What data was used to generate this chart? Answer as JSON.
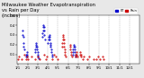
{
  "title": "Milwaukee Weather Evapotranspiration",
  "title2": "vs Rain per Day",
  "title3": "(Inches)",
  "title_fontsize": 3.8,
  "bg_color": "#e8e8e8",
  "plot_bg": "#ffffff",
  "et_color": "#0000cc",
  "rain_color": "#cc0000",
  "legend_et": "ET",
  "legend_rain": "Rain",
  "ylim": [
    0,
    0.5
  ],
  "ytick_vals": [
    0.1,
    0.2,
    0.3,
    0.4,
    0.5
  ],
  "marker_size": 1.0,
  "et_values": [
    0.0,
    0.0,
    0.0,
    0.0,
    0.0,
    0.0,
    0.0,
    0.0,
    0.0,
    0.0,
    0.0,
    0.0,
    0.0,
    0.0,
    0.35,
    0.3,
    0.28,
    0.22,
    0.18,
    0.15,
    0.0,
    0.0,
    0.0,
    0.0,
    0.0,
    0.08,
    0.1,
    0.12,
    0.1,
    0.08,
    0.0,
    0.0,
    0.0,
    0.0,
    0.0,
    0.0,
    0.0,
    0.0,
    0.0,
    0.0,
    0.0,
    0.0,
    0.0,
    0.0,
    0.0,
    0.0,
    0.0,
    0.0,
    0.0,
    0.0,
    0.0,
    0.0,
    0.12,
    0.15,
    0.18,
    0.2,
    0.22,
    0.18,
    0.15,
    0.12,
    0.1,
    0.08,
    0.06,
    0.0,
    0.0,
    0.0,
    0.0,
    0.0,
    0.0,
    0.0,
    0.0,
    0.0,
    0.0,
    0.28,
    0.32,
    0.35,
    0.38,
    0.4,
    0.38,
    0.35,
    0.3,
    0.25,
    0.0,
    0.0,
    0.0,
    0.0,
    0.0,
    0.0,
    0.0,
    0.0,
    0.0,
    0.22,
    0.25,
    0.28,
    0.3,
    0.28,
    0.25,
    0.22,
    0.2,
    0.18,
    0.15,
    0.12,
    0.1,
    0.08,
    0.0,
    0.0,
    0.0,
    0.0,
    0.0,
    0.0,
    0.0,
    0.0,
    0.0,
    0.0,
    0.0,
    0.0,
    0.0,
    0.0,
    0.0,
    0.0,
    0.0,
    0.0,
    0.0,
    0.0,
    0.0,
    0.0,
    0.0,
    0.0,
    0.0,
    0.0,
    0.0,
    0.0,
    0.0,
    0.0,
    0.0,
    0.0,
    0.0,
    0.0,
    0.0,
    0.0,
    0.0,
    0.0,
    0.0,
    0.0,
    0.0,
    0.0,
    0.0,
    0.0,
    0.0,
    0.0,
    0.0,
    0.0,
    0.0,
    0.0,
    0.0,
    0.0,
    0.0,
    0.0,
    0.0,
    0.0,
    0.0,
    0.0,
    0.0,
    0.0,
    0.1,
    0.12,
    0.15,
    0.18,
    0.2,
    0.18,
    0.15,
    0.12,
    0.1,
    0.08,
    0.0,
    0.0,
    0.0,
    0.0,
    0.0,
    0.0,
    0.0,
    0.0,
    0.0,
    0.0,
    0.0,
    0.0,
    0.0,
    0.0,
    0.0,
    0.0,
    0.0,
    0.0,
    0.0,
    0.0,
    0.0,
    0.0,
    0.0,
    0.0,
    0.0,
    0.0,
    0.0,
    0.0,
    0.0,
    0.0,
    0.0,
    0.0,
    0.0,
    0.0,
    0.0,
    0.0,
    0.0,
    0.0,
    0.0,
    0.0,
    0.0,
    0.0,
    0.0,
    0.0,
    0.0,
    0.0,
    0.0,
    0.0,
    0.0,
    0.0,
    0.0,
    0.0,
    0.0,
    0.0,
    0.0,
    0.0,
    0.0,
    0.0,
    0.0,
    0.0,
    0.0,
    0.0,
    0.0,
    0.0,
    0.0,
    0.0,
    0.0,
    0.0,
    0.0,
    0.0,
    0.0,
    0.0,
    0.0,
    0.0,
    0.0,
    0.0,
    0.0,
    0.0,
    0.0,
    0.0,
    0.0,
    0.0,
    0.0,
    0.0,
    0.0,
    0.0,
    0.0,
    0.0,
    0.0,
    0.0,
    0.0,
    0.0,
    0.0,
    0.0,
    0.0,
    0.0,
    0.0,
    0.0,
    0.0,
    0.0,
    0.0,
    0.0,
    0.0,
    0.0,
    0.0,
    0.0,
    0.0,
    0.0,
    0.0,
    0.0,
    0.0,
    0.0,
    0.0,
    0.0,
    0.0,
    0.0,
    0.0,
    0.0,
    0.0,
    0.0,
    0.0,
    0.0,
    0.0,
    0.0,
    0.0,
    0.0,
    0.0,
    0.0,
    0.0,
    0.0,
    0.0,
    0.0,
    0.0,
    0.0,
    0.0,
    0.0,
    0.0,
    0.0,
    0.0,
    0.0,
    0.0,
    0.0,
    0.0,
    0.0,
    0.0,
    0.0,
    0.0,
    0.0,
    0.0,
    0.0,
    0.0,
    0.0,
    0.0,
    0.0,
    0.0,
    0.0,
    0.0,
    0.0,
    0.0,
    0.0,
    0.0,
    0.0,
    0.0,
    0.0,
    0.0,
    0.0,
    0.0,
    0.0,
    0.0,
    0.0,
    0.0,
    0.0,
    0.0,
    0.0,
    0.0,
    0.0,
    0.0,
    0.0,
    0.0,
    0.0,
    0.0,
    0.0,
    0.0,
    0.0,
    0.0,
    0.0,
    0.0,
    0.0,
    0.0,
    0.0
  ],
  "rain_values": [
    0.0,
    0.05,
    0.0,
    0.0,
    0.0,
    0.08,
    0.0,
    0.0,
    0.0,
    0.0,
    0.0,
    0.05,
    0.0,
    0.0,
    0.0,
    0.0,
    0.0,
    0.0,
    0.0,
    0.0,
    0.1,
    0.0,
    0.0,
    0.0,
    0.05,
    0.0,
    0.0,
    0.0,
    0.0,
    0.08,
    0.0,
    0.0,
    0.05,
    0.0,
    0.0,
    0.0,
    0.0,
    0.0,
    0.0,
    0.0,
    0.0,
    0.0,
    0.08,
    0.0,
    0.0,
    0.0,
    0.0,
    0.0,
    0.0,
    0.0,
    0.0,
    0.05,
    0.0,
    0.0,
    0.0,
    0.0,
    0.0,
    0.0,
    0.0,
    0.0,
    0.0,
    0.08,
    0.0,
    0.0,
    0.0,
    0.0,
    0.05,
    0.0,
    0.0,
    0.0,
    0.0,
    0.0,
    0.0,
    0.0,
    0.0,
    0.0,
    0.0,
    0.0,
    0.0,
    0.0,
    0.1,
    0.0,
    0.0,
    0.0,
    0.05,
    0.0,
    0.0,
    0.0,
    0.08,
    0.0,
    0.0,
    0.0,
    0.0,
    0.0,
    0.0,
    0.0,
    0.0,
    0.0,
    0.0,
    0.0,
    0.0,
    0.0,
    0.0,
    0.05,
    0.0,
    0.0,
    0.0,
    0.0,
    0.1,
    0.0,
    0.0,
    0.0,
    0.0,
    0.0,
    0.08,
    0.0,
    0.0,
    0.0,
    0.0,
    0.05,
    0.0,
    0.0,
    0.0,
    0.0,
    0.0,
    0.0,
    0.0,
    0.0,
    0.0,
    0.0,
    0.0,
    0.0,
    0.18,
    0.22,
    0.25,
    0.28,
    0.3,
    0.25,
    0.22,
    0.18,
    0.15,
    0.12,
    0.1,
    0.08,
    0.0,
    0.0,
    0.0,
    0.0,
    0.0,
    0.0,
    0.0,
    0.0,
    0.0,
    0.0,
    0.0,
    0.0,
    0.2,
    0.18,
    0.15,
    0.12,
    0.1,
    0.08,
    0.0,
    0.0,
    0.0,
    0.0,
    0.0,
    0.0,
    0.0,
    0.0,
    0.0,
    0.0,
    0.0,
    0.08,
    0.1,
    0.12,
    0.1,
    0.08,
    0.0,
    0.0,
    0.0,
    0.0,
    0.0,
    0.0,
    0.0,
    0.0,
    0.1,
    0.12,
    0.1,
    0.08,
    0.0,
    0.0,
    0.0,
    0.0,
    0.05,
    0.0,
    0.0,
    0.0,
    0.08,
    0.0,
    0.0,
    0.0,
    0.0,
    0.0,
    0.0,
    0.0,
    0.0,
    0.0,
    0.05,
    0.0,
    0.0,
    0.0,
    0.0,
    0.08,
    0.0,
    0.0,
    0.0,
    0.0,
    0.0,
    0.0,
    0.0,
    0.0,
    0.0,
    0.0,
    0.0,
    0.0,
    0.05,
    0.0,
    0.0,
    0.0,
    0.0,
    0.0,
    0.0,
    0.0,
    0.0,
    0.05,
    0.0,
    0.0,
    0.0,
    0.08,
    0.0,
    0.0,
    0.0,
    0.0,
    0.0,
    0.05,
    0.0,
    0.0,
    0.0,
    0.0,
    0.0,
    0.0,
    0.0,
    0.08,
    0.0,
    0.0,
    0.0,
    0.05,
    0.0,
    0.0,
    0.0,
    0.0,
    0.0,
    0.0,
    0.0,
    0.0,
    0.0,
    0.0,
    0.0,
    0.0,
    0.0,
    0.0,
    0.0,
    0.0,
    0.0,
    0.0,
    0.0,
    0.0,
    0.0,
    0.0,
    0.0,
    0.0,
    0.0,
    0.0,
    0.0,
    0.0,
    0.0,
    0.0,
    0.0,
    0.0,
    0.0,
    0.0,
    0.0,
    0.0,
    0.0,
    0.0,
    0.0,
    0.0,
    0.0,
    0.0,
    0.0,
    0.0,
    0.0,
    0.0,
    0.0,
    0.0,
    0.0,
    0.0,
    0.0,
    0.0,
    0.0,
    0.0,
    0.0,
    0.0,
    0.0,
    0.0,
    0.0,
    0.0,
    0.0,
    0.0,
    0.0,
    0.0,
    0.0,
    0.0,
    0.0,
    0.0,
    0.0,
    0.0,
    0.0,
    0.0,
    0.0,
    0.0,
    0.0,
    0.0,
    0.0,
    0.0,
    0.0,
    0.0,
    0.0,
    0.0,
    0.0,
    0.0,
    0.0,
    0.0,
    0.0,
    0.0,
    0.0,
    0.0,
    0.0,
    0.0,
    0.0,
    0.0,
    0.0,
    0.0,
    0.0,
    0.0,
    0.0,
    0.0,
    0.0,
    0.0,
    0.0,
    0.0,
    0.0,
    0.0
  ],
  "vline_color": "#aaaaaa",
  "vline_positions": [
    31,
    59,
    90,
    120,
    151,
    181,
    212,
    243,
    273,
    304,
    334
  ],
  "xtick_labels": [
    "1/1",
    "2/1",
    "3/1",
    "4/1",
    "5/1",
    "6/1",
    "7/1",
    "8/1",
    "9/1",
    "10/1",
    "11/1",
    "12/1"
  ],
  "xtick_positions": [
    0,
    31,
    59,
    90,
    120,
    151,
    181,
    212,
    243,
    273,
    304,
    334
  ],
  "tick_fontsize": 2.8
}
